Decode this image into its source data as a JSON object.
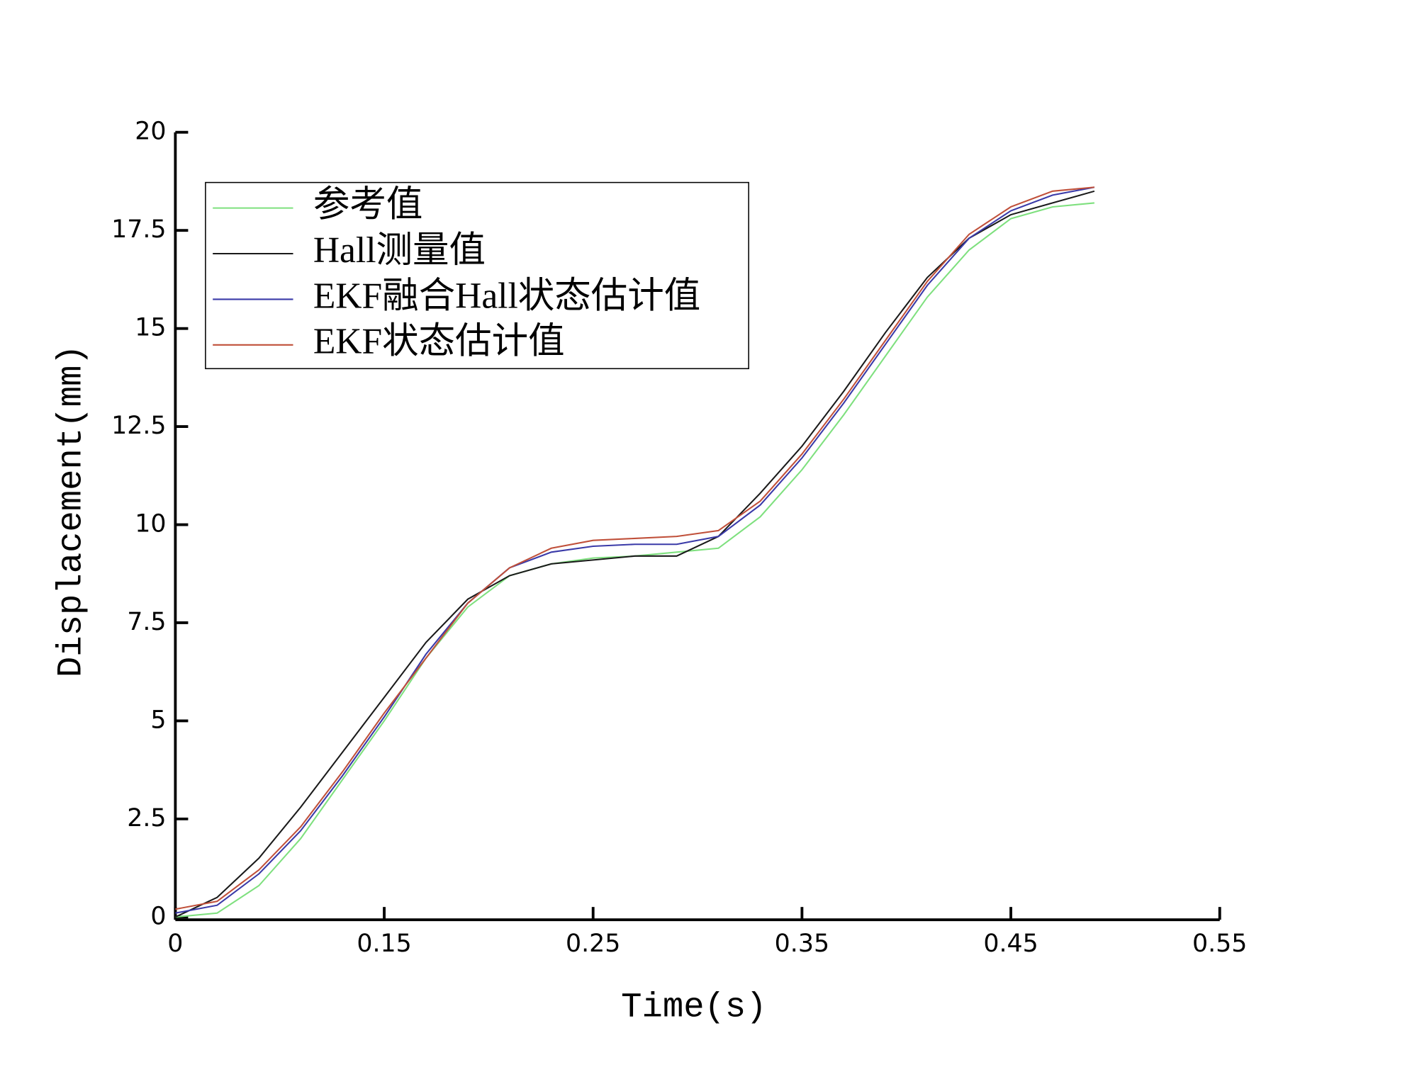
{
  "chart_data": {
    "type": "line",
    "xlabel": "Time(s)",
    "ylabel": "Displacement(mm)",
    "x": [
      0.05,
      0.07,
      0.09,
      0.11,
      0.13,
      0.15,
      0.17,
      0.19,
      0.21,
      0.23,
      0.25,
      0.27,
      0.29,
      0.31,
      0.33,
      0.35,
      0.37,
      0.39,
      0.41,
      0.43,
      0.45,
      0.47,
      0.49
    ],
    "series": [
      {
        "name": "参考值",
        "color": "#7ee07e",
        "values": [
          0,
          0.1,
          0.8,
          2.0,
          3.5,
          5.0,
          6.6,
          7.9,
          8.7,
          9.0,
          9.15,
          9.2,
          9.3,
          9.4,
          10.2,
          11.4,
          12.8,
          14.3,
          15.8,
          17.0,
          17.8,
          18.1,
          18.2
        ]
      },
      {
        "name": "Hall测量值",
        "color": "#1a1a1a",
        "values": [
          0,
          0.5,
          1.5,
          2.8,
          4.2,
          5.6,
          7.0,
          8.1,
          8.7,
          9.0,
          9.1,
          9.2,
          9.2,
          9.7,
          10.8,
          12.0,
          13.4,
          14.9,
          16.3,
          17.3,
          17.9,
          18.2,
          18.5
        ]
      },
      {
        "name": "EKF融合Hall状态估计值",
        "color": "#3a3aa8",
        "values": [
          0.1,
          0.3,
          1.1,
          2.2,
          3.6,
          5.1,
          6.7,
          8.0,
          8.9,
          9.3,
          9.45,
          9.5,
          9.5,
          9.7,
          10.5,
          11.7,
          13.1,
          14.6,
          16.1,
          17.3,
          18.0,
          18.4,
          18.6
        ]
      },
      {
        "name": "EKF状态估计值",
        "color": "#c0503a",
        "values": [
          0.2,
          0.4,
          1.2,
          2.3,
          3.7,
          5.2,
          6.6,
          8.0,
          8.9,
          9.4,
          9.6,
          9.65,
          9.7,
          9.85,
          10.6,
          11.8,
          13.2,
          14.7,
          16.2,
          17.4,
          18.1,
          18.5,
          18.6
        ]
      }
    ],
    "xlim": [
      0.05,
      0.55
    ],
    "xticks": [
      {
        "value": 0.05,
        "label": "0"
      },
      0.15,
      0.25,
      0.35,
      0.45,
      0.55
    ],
    "ylim": [
      0,
      20
    ],
    "yticks": [
      0,
      2.5,
      5,
      7.5,
      10,
      12.5,
      15,
      17.5,
      20
    ],
    "legend": "upper left"
  }
}
